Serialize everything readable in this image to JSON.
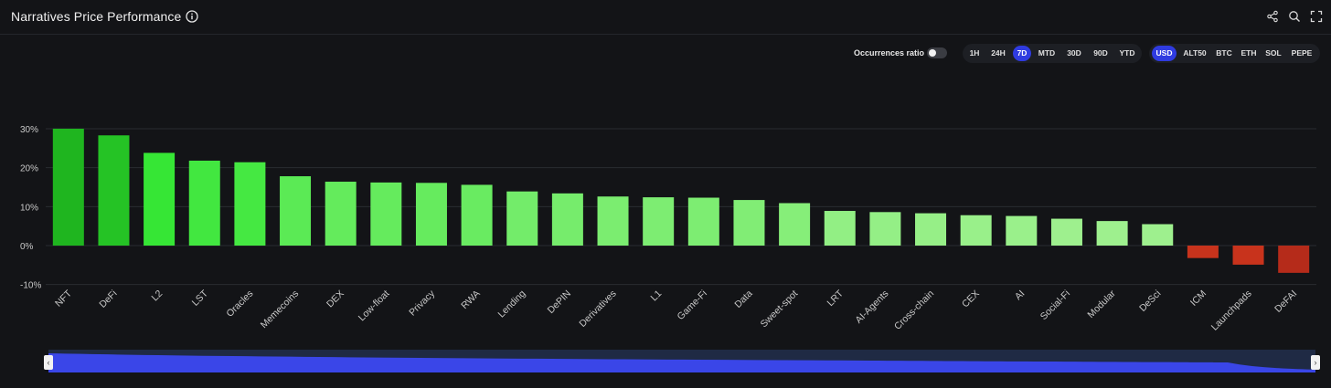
{
  "header": {
    "title": "Narratives Price Performance",
    "icons": [
      "info-icon",
      "share-icon",
      "search-icon",
      "fullscreen-icon"
    ]
  },
  "controls": {
    "occurrences_label": "Occurrences ratio",
    "occurrences_on": false,
    "timeframes": [
      "1H",
      "24H",
      "7D",
      "MTD",
      "30D",
      "90D",
      "YTD"
    ],
    "timeframe_active": "7D",
    "currencies": [
      "USD",
      "ALT50",
      "BTC",
      "ETH",
      "SOL",
      "PEPE"
    ],
    "currency_active": "USD"
  },
  "colors": {
    "background": "#131417",
    "accent": "#2f3be0",
    "positive_strong": "#1fbf1f",
    "positive_light": "#9ef08e",
    "negative": "#c8331c",
    "navigator": "#3a46e8"
  },
  "chart_data": {
    "type": "bar",
    "title": "Narratives Price Performance",
    "xlabel": "",
    "ylabel": "",
    "ylim": [
      -10,
      30
    ],
    "yticks": [
      30,
      20,
      10,
      0,
      -10
    ],
    "ytick_labels": [
      "30%",
      "20%",
      "10%",
      "0%",
      "-10%"
    ],
    "grid": true,
    "categories": [
      "NFT",
      "DeFi",
      "L2",
      "LST",
      "Oracles",
      "Memecoins",
      "DEX",
      "Low-float",
      "Privacy",
      "RWA",
      "Lending",
      "DePIN",
      "Derivatives",
      "L1",
      "Game-Fi",
      "Data",
      "Sweet-spot",
      "LRT",
      "AI-Agents",
      "Cross-chain",
      "CEX",
      "AI",
      "Social-Fi",
      "Modular",
      "DeSci",
      "ICM",
      "Launchpads",
      "DeFAI"
    ],
    "values": [
      30.0,
      28.3,
      23.8,
      21.8,
      21.4,
      17.8,
      16.4,
      16.2,
      16.1,
      15.6,
      13.9,
      13.4,
      12.6,
      12.4,
      12.3,
      11.7,
      10.9,
      8.9,
      8.6,
      8.3,
      7.8,
      7.6,
      6.9,
      6.3,
      5.5,
      -3.2,
      -4.9,
      -7.0
    ]
  }
}
